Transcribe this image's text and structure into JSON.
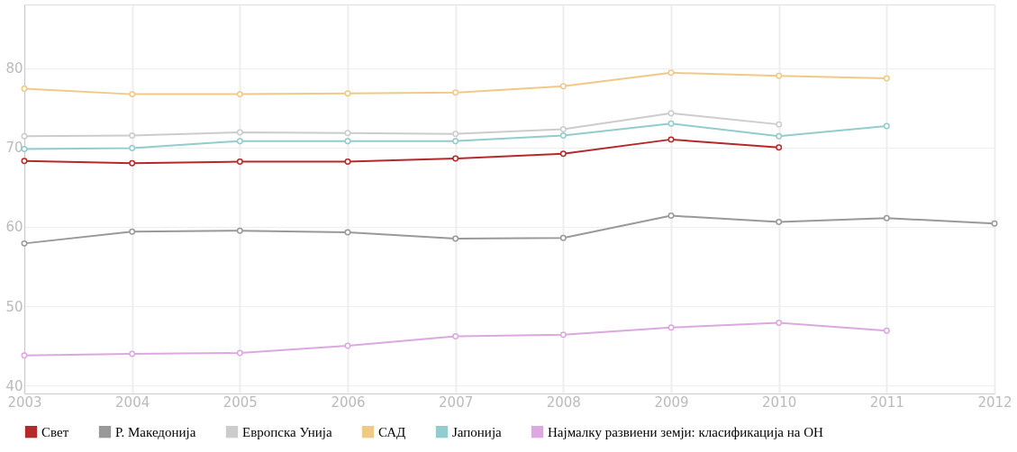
{
  "chart_data": {
    "type": "line",
    "x": [
      2003,
      2004,
      2005,
      2006,
      2007,
      2008,
      2009,
      2010,
      2011,
      2012
    ],
    "xlim": [
      2003,
      2012
    ],
    "xticks": [
      2003,
      2004,
      2005,
      2006,
      2007,
      2008,
      2009,
      2010,
      2011,
      2012
    ],
    "ylim": [
      39,
      88
    ],
    "yticks": [
      40,
      50,
      60,
      70,
      80
    ],
    "grid": true,
    "legend": "bottom",
    "marker": "circle",
    "line_style": "solid",
    "series": [
      {
        "name": "Свет",
        "color": "#b5292b",
        "values": [
          68.3,
          68.0,
          68.2,
          68.2,
          68.6,
          69.2,
          71.0,
          70.0,
          null,
          null
        ]
      },
      {
        "name": "Р. Македонија",
        "color": "#999999",
        "values": [
          57.9,
          59.4,
          59.5,
          59.3,
          58.5,
          58.6,
          61.4,
          60.6,
          61.1,
          60.4
        ]
      },
      {
        "name": "Европска Унија",
        "color": "#cccccc",
        "values": [
          71.4,
          71.5,
          71.9,
          71.8,
          71.7,
          72.3,
          74.3,
          72.9,
          null,
          null
        ]
      },
      {
        "name": "САД",
        "color": "#f0c987",
        "values": [
          77.4,
          76.7,
          76.7,
          76.8,
          76.9,
          77.7,
          79.4,
          79.0,
          78.7,
          null
        ]
      },
      {
        "name": "Јапонија",
        "color": "#93cccc",
        "values": [
          69.8,
          69.9,
          70.8,
          70.8,
          70.8,
          71.5,
          73.0,
          71.4,
          72.7,
          null
        ]
      },
      {
        "name": "Најмалку развиени земји: класификација на ОН",
        "color": "#dca8e0",
        "values": [
          43.8,
          44.0,
          44.1,
          45.0,
          46.2,
          46.4,
          47.3,
          47.9,
          46.9,
          null
        ]
      }
    ]
  }
}
